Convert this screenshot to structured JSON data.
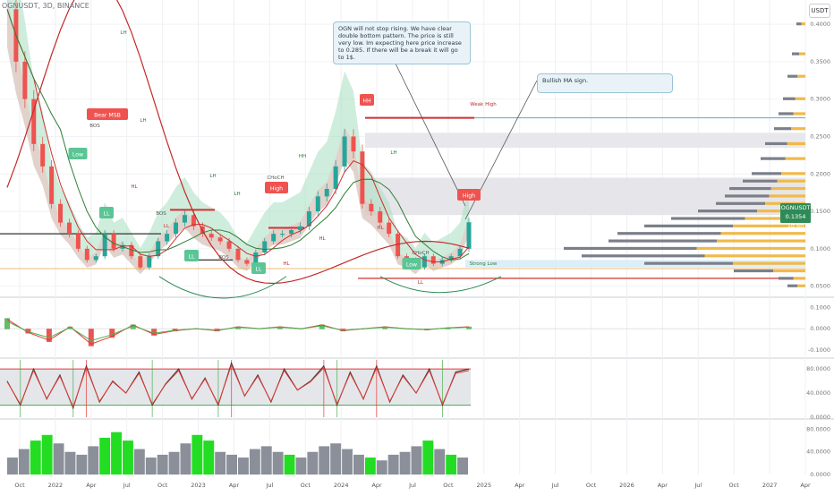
{
  "header": {
    "symbol": "OGNUSDT, 3D, BINANCE",
    "currency": "USDT"
  },
  "price_badge": {
    "symbol": "OGNUSDT",
    "value": "0.1354",
    "countdown": "1d 6h"
  },
  "annotations": {
    "note_1": "OGN will not stop rising. We have clear double bottom pattern. The price is still very low. Im expecting here price increase to 0.285. If there will be a break it will go to 1$.",
    "note_2": "Bullish MA sign."
  },
  "markers": [
    {
      "text": "HH",
      "kind": "swing"
    },
    {
      "text": "High",
      "kind": "swing"
    },
    {
      "text": "High",
      "kind": "swing"
    },
    {
      "text": "Low",
      "kind": "swing"
    },
    {
      "text": "LL",
      "kind": "swing"
    },
    {
      "text": "LL",
      "kind": "swing"
    },
    {
      "text": "LL",
      "kind": "swing"
    },
    {
      "text": "Low",
      "kind": "swing"
    },
    {
      "text": "Bear MSB",
      "kind": "signal"
    }
  ],
  "structure_labels": [
    "LH",
    "LH",
    "LH",
    "LH",
    "HH",
    "LH",
    "HL",
    "HL",
    "HL",
    "HL",
    "LL",
    "LL",
    "BOS",
    "BOS",
    "BOS",
    "CHoCH",
    "CHoCH",
    "Weak High",
    "Strong Low"
  ],
  "colors": {
    "up": "#26a69a",
    "down": "#ef5350",
    "green_band": "#a8dfc0",
    "red_band": "#f4b8bc",
    "ma_red": "#d32f2f",
    "ma_green": "#2e7d32",
    "volume_profile_up": "#f0b94a",
    "volume_profile_down": "#7a7f89",
    "osc_green": "#4caf50",
    "osc_red": "#e53935",
    "vol_green": "#22dd22",
    "vol_grey": "#8a8f99"
  },
  "chart_data": [
    {
      "type": "line",
      "title": "OGNUSDT, 3D, BINANCE",
      "x_ticks": [
        "Oct",
        "2022",
        "Apr",
        "Jul",
        "Oct",
        "2023",
        "Apr",
        "Jul",
        "Oct",
        "2024",
        "Apr",
        "Jul",
        "Oct",
        "2025",
        "Apr",
        "Jul",
        "Oct",
        "2026",
        "Apr",
        "Jul",
        "Oct",
        "2027",
        "Apr"
      ],
      "y_ticks": [
        "0.4000",
        "0.3500",
        "0.3000",
        "0.2500",
        "0.2000",
        "0.1500",
        "0.1000",
        "0.0500"
      ],
      "ylim": [
        0.04,
        0.43
      ],
      "series": [
        {
          "values": [
            0.42,
            0.35,
            0.3,
            0.24,
            0.21,
            0.16,
            0.135,
            0.12,
            0.1,
            0.085,
            0.09,
            0.12,
            0.1,
            0.105,
            0.09,
            0.075,
            0.09,
            0.11,
            0.12,
            0.135,
            0.145,
            0.13,
            0.12,
            0.115,
            0.11,
            0.1,
            0.085,
            0.08,
            0.095,
            0.11,
            0.12,
            0.12,
            0.125,
            0.13,
            0.15,
            0.17,
            0.18,
            0.21,
            0.25,
            0.23,
            0.16,
            0.15,
            0.135,
            0.12,
            0.09,
            0.085,
            0.075,
            0.09,
            0.08,
            0.085,
            0.09,
            0.1,
            0.1354
          ]
        }
      ],
      "last_price": 0.1354,
      "grid": true
    },
    {
      "type": "line",
      "title": "",
      "y_ticks": [
        "0.1000",
        "0.0000",
        "-0.1000"
      ],
      "ylim": [
        -0.13,
        0.14
      ],
      "series": [
        {
          "values": [
            0.05,
            -0.02,
            -0.06,
            0.01,
            -0.08,
            -0.04,
            0.02,
            -0.03,
            -0.01,
            0.0,
            -0.01,
            0.01,
            0.0,
            0.01,
            0.0,
            0.02,
            -0.01,
            0.0,
            0.01,
            0.0,
            -0.005,
            0.005,
            0.01
          ]
        }
      ]
    },
    {
      "type": "line",
      "title": "",
      "y_ticks": [
        "80.0000",
        "40.0000",
        "0.0000"
      ],
      "ylim": [
        0,
        95
      ],
      "series": [
        {
          "values": [
            60,
            20,
            80,
            30,
            70,
            15,
            85,
            25,
            60,
            40,
            75,
            20,
            55,
            80,
            30,
            65,
            20,
            90,
            35,
            70,
            25,
            80,
            45,
            60,
            85,
            20,
            75,
            30,
            85,
            25,
            70,
            40,
            80,
            20,
            75,
            80
          ]
        }
      ]
    },
    {
      "type": "bar",
      "title": "",
      "y_ticks": [
        "80.0000",
        "40.0000",
        "0.0000"
      ],
      "ylim": [
        0,
        95
      ],
      "values": [
        30,
        45,
        60,
        70,
        55,
        40,
        35,
        50,
        65,
        75,
        60,
        45,
        30,
        35,
        40,
        55,
        70,
        60,
        40,
        35,
        30,
        45,
        50,
        40,
        35,
        30,
        40,
        50,
        55,
        45,
        35,
        30,
        25,
        35,
        40,
        50,
        60,
        45,
        35,
        30
      ]
    }
  ]
}
